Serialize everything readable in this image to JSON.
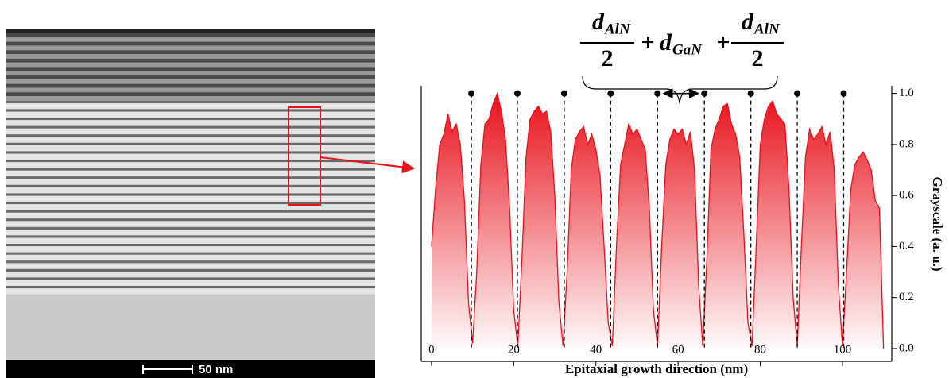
{
  "chart_data": {
    "type": "area",
    "color": "#e8101a",
    "x": [
      0,
      1,
      2,
      3,
      4,
      5,
      6,
      7,
      8,
      9,
      10,
      11,
      12,
      13,
      14,
      15,
      16,
      17,
      18,
      19,
      20,
      21,
      22,
      23,
      24,
      25,
      26,
      27,
      28,
      29,
      30,
      31,
      32,
      33,
      34,
      35,
      36,
      37,
      38,
      39,
      40,
      41,
      42,
      43,
      44,
      45,
      46,
      47,
      48,
      49,
      50,
      51,
      52,
      53,
      54,
      55,
      56,
      57,
      58,
      59,
      60,
      61,
      62,
      63,
      64,
      65,
      66,
      67,
      68,
      69,
      70,
      71,
      72,
      73,
      74,
      75,
      76,
      77,
      78,
      79,
      80,
      81,
      82,
      83,
      84,
      85,
      86,
      87,
      88,
      89,
      90,
      91,
      92,
      93,
      94,
      95,
      96,
      97,
      98,
      99,
      100,
      101,
      102,
      103,
      104,
      105,
      106,
      107,
      108,
      109,
      110
    ],
    "values": [
      0.4,
      0.63,
      0.8,
      0.84,
      0.92,
      0.85,
      0.88,
      0.8,
      0.58,
      0.18,
      0.02,
      0.3,
      0.72,
      0.88,
      0.9,
      0.96,
      1.0,
      0.93,
      0.82,
      0.55,
      0.15,
      0.01,
      0.35,
      0.75,
      0.9,
      0.93,
      0.95,
      0.92,
      0.93,
      0.85,
      0.6,
      0.18,
      0.01,
      0.3,
      0.7,
      0.82,
      0.85,
      0.87,
      0.8,
      0.84,
      0.78,
      0.68,
      0.4,
      0.1,
      0.01,
      0.4,
      0.72,
      0.8,
      0.88,
      0.84,
      0.86,
      0.82,
      0.78,
      0.55,
      0.15,
      0.01,
      0.4,
      0.72,
      0.82,
      0.86,
      0.84,
      0.86,
      0.8,
      0.85,
      0.7,
      0.25,
      0.01,
      0.35,
      0.78,
      0.86,
      0.9,
      0.95,
      0.96,
      0.88,
      0.84,
      0.75,
      0.45,
      0.1,
      0.01,
      0.4,
      0.8,
      0.9,
      0.95,
      0.97,
      0.92,
      0.9,
      0.88,
      0.62,
      0.2,
      0.01,
      0.4,
      0.75,
      0.86,
      0.82,
      0.84,
      0.87,
      0.8,
      0.85,
      0.7,
      0.25,
      0.01,
      0.3,
      0.62,
      0.72,
      0.75,
      0.77,
      0.74,
      0.7,
      0.58,
      0.55,
      0.0
    ],
    "markers_x": [
      9.7,
      20.9,
      32.3,
      43.6,
      55,
      66.4,
      77.7,
      89,
      100.3
    ],
    "xlim": [
      -2.5,
      112
    ],
    "xticks": [
      0,
      20,
      40,
      60,
      80,
      100
    ],
    "ylim": [
      -0.05,
      1.03
    ],
    "yticks": [
      {
        "value": 0,
        "label": "0.0"
      },
      0.2,
      0.4,
      0.6,
      0.8,
      {
        "value": 1,
        "label": "1.0"
      }
    ],
    "xlabel": "Epitaxial growth direction (nm)",
    "ylabel": "Grayscale (a. u.)",
    "bracket_label": {
      "left": {
        "symbol": "d",
        "subscript": "AlN",
        "denominator": "2"
      },
      "plus1": "+",
      "middle": {
        "symbol": "d",
        "subscript": "GaN"
      },
      "plus2": "+",
      "right": {
        "symbol": "d",
        "subscript": "AlN",
        "denominator": "2"
      }
    }
  },
  "image": {
    "scale_bar": "50 nm"
  }
}
